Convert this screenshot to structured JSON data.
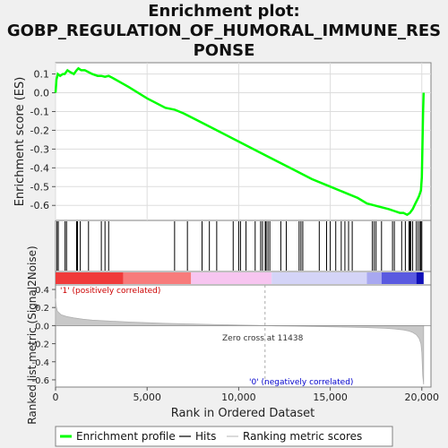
{
  "title_lines": [
    "Enrichment plot:",
    "GOBP_REGULATION_OF_HUMORAL_IMMUNE_RES",
    "PONSE"
  ],
  "chart_data": [
    {
      "type": "line",
      "name": "enrichment-profile",
      "ylabel": "Enrichment score (ES)",
      "xlim": [
        0,
        20500
      ],
      "ylim": [
        -0.68,
        0.16
      ],
      "yticks": [
        0.1,
        0.0,
        -0.1,
        -0.2,
        -0.3,
        -0.4,
        -0.5,
        -0.6
      ],
      "ytick_labels": [
        "0.1",
        "0.0",
        "-0.1",
        "-0.2",
        "-0.3",
        "-0.4",
        "-0.5",
        "-0.6"
      ],
      "color": "#00ff00",
      "series": [
        {
          "x": [
            0,
            50,
            120,
            250,
            400,
            500,
            650,
            800,
            1000,
            1150,
            1250,
            1400,
            1600,
            1800,
            2000,
            2300,
            2500,
            2700,
            2900,
            3100,
            4000,
            5000,
            6000,
            6500,
            7000,
            8000,
            9000,
            10000,
            11000,
            12000,
            13000,
            14000,
            15000,
            16000,
            16500,
            17000,
            17400,
            17800,
            18200,
            18500,
            18800,
            19000,
            19200,
            19350,
            19500,
            19650,
            19750,
            19850,
            19950,
            20000,
            20050,
            20070,
            20100
          ],
          "values": [
            0.0,
            0.07,
            0.1,
            0.09,
            0.1,
            0.1,
            0.12,
            0.11,
            0.1,
            0.12,
            0.13,
            0.12,
            0.12,
            0.11,
            0.1,
            0.09,
            0.09,
            0.085,
            0.09,
            0.08,
            0.03,
            -0.03,
            -0.08,
            -0.09,
            -0.11,
            -0.16,
            -0.21,
            -0.26,
            -0.31,
            -0.36,
            -0.41,
            -0.46,
            -0.5,
            -0.54,
            -0.56,
            -0.59,
            -0.6,
            -0.61,
            -0.62,
            -0.63,
            -0.64,
            -0.64,
            -0.65,
            -0.64,
            -0.62,
            -0.59,
            -0.57,
            -0.55,
            -0.52,
            -0.45,
            -0.2,
            -0.1,
            0.0
          ]
        }
      ]
    },
    {
      "type": "hits",
      "name": "hits",
      "x": [
        80,
        150,
        520,
        600,
        1150,
        1200,
        1350,
        1800,
        2500,
        2700,
        2900,
        6500,
        7200,
        8000,
        8400,
        8800,
        9700,
        10000,
        10100,
        10400,
        10900,
        11200,
        11300,
        11450,
        11500,
        11600,
        11700,
        12300,
        12600,
        13300,
        13400,
        13500,
        14400,
        14800,
        15000,
        15300,
        15600,
        15800,
        16000,
        16200,
        17300,
        17400,
        17500,
        17800,
        18400,
        18500,
        18900,
        19100,
        19300,
        19350,
        19400,
        19500,
        19700,
        19800,
        19900,
        19950,
        20000
      ]
    },
    {
      "type": "area",
      "name": "ranking-metric",
      "ylabel": "Ranked list metric (Signal2Noise)",
      "xlabel": "Rank in Ordered Dataset",
      "xlim": [
        0,
        20500
      ],
      "ylim": [
        -0.68,
        0.45
      ],
      "xticks": [
        0,
        5000,
        10000,
        15000,
        20000
      ],
      "xtick_labels": [
        "0",
        "5,000",
        "10,000",
        "15,000",
        "20,000"
      ],
      "yticks": [
        0.4,
        0.2,
        0.0,
        -0.2,
        -0.4,
        -0.6
      ],
      "ytick_labels": [
        "0.4",
        "0.2",
        "0.0",
        "-0.2",
        "-0.4",
        "-0.6"
      ],
      "zero_cross": 11438,
      "x": [
        0,
        30,
        100,
        300,
        600,
        1000,
        1500,
        2000,
        3000,
        4000,
        5000,
        6000,
        7000,
        8000,
        9000,
        10000,
        11000,
        11438,
        12000,
        13000,
        14000,
        15000,
        16000,
        17000,
        18000,
        18500,
        19000,
        19300,
        19500,
        19700,
        19850,
        19950,
        20000,
        20050,
        20100
      ],
      "values": [
        0.3,
        0.22,
        0.16,
        0.12,
        0.1,
        0.085,
        0.07,
        0.06,
        0.05,
        0.04,
        0.032,
        0.025,
        0.02,
        0.015,
        0.01,
        0.006,
        0.002,
        0.0,
        -0.003,
        -0.006,
        -0.01,
        -0.013,
        -0.017,
        -0.022,
        -0.03,
        -0.037,
        -0.048,
        -0.06,
        -0.075,
        -0.1,
        -0.14,
        -0.2,
        -0.3,
        -0.55,
        -0.65
      ]
    }
  ],
  "labels": {
    "positive": "'1' (positively correlated)",
    "negative": "'0' (negatively correlated)",
    "zero_cross": "Zero cross at 11438"
  },
  "legend": [
    {
      "label": "Enrichment profile",
      "color": "#00ff00"
    },
    {
      "label": "Hits",
      "color": "#000000"
    },
    {
      "label": "Ranking metric scores",
      "color": "#c0c0c0"
    }
  ]
}
